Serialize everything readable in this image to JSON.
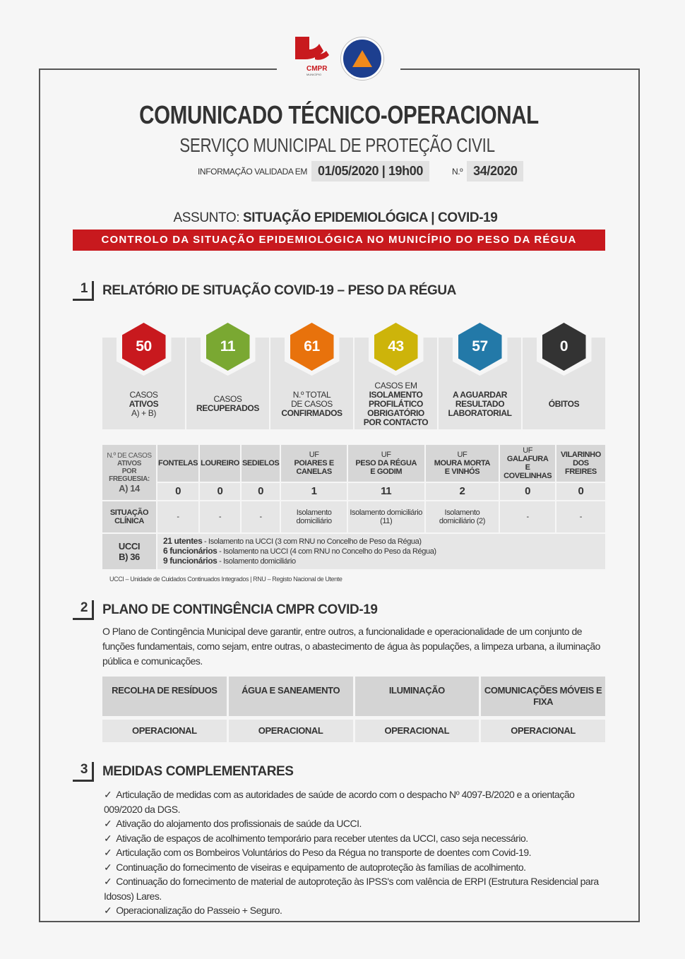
{
  "header": {
    "logo_text": "CMPR MUNICÍPIO PESO DA RÉGUA",
    "seal_text": "PROTECÇÃO CIVIL PESO DA RÉGUA",
    "title": "COMUNICADO TÉCNICO-OPERACIONAL",
    "subtitle": "SERVIÇO MUNICIPAL DE PROTEÇÃO CIVIL",
    "validated_label": "INFORMAÇÃO VALIDADA EM",
    "validated_value": "01/05/2020 | 19h00",
    "number_label": "N.º",
    "number_value": "34/2020",
    "subject_label": "ASSUNTO:",
    "subject_value": "SITUAÇÃO EPIDEMIOLÓGICA | COVID-19",
    "banner": "CONTROLO DA SITUAÇÃO EPIDEMIOLÓGICA NO MUNICÍPIO DO PESO DA RÉGUA"
  },
  "section1": {
    "number": "1",
    "title": "RELATÓRIO DE SITUAÇÃO COVID-19 – PESO DA RÉGUA",
    "stats": [
      {
        "value": "50",
        "color": "#c8191e",
        "l1": "CASOS",
        "l2": "ATIVOS",
        "l3": "A) + B)"
      },
      {
        "value": "11",
        "color": "#7aa832",
        "l1": "CASOS",
        "l2": "RECUPERADOS",
        "l3": ""
      },
      {
        "value": "61",
        "color": "#e8720c",
        "l1": "N.º TOTAL",
        "l1b": "DE CASOS",
        "l2": "CONFIRMADOS"
      },
      {
        "value": "43",
        "color": "#cdb40a",
        "l1": "CASOS EM",
        "l2": "ISOLAMENTO",
        "l3": "PROFILÁTICO",
        "l4": "OBRIGATÓRIO",
        "l5": "POR CONTACTO"
      },
      {
        "value": "57",
        "color": "#2379a8",
        "l2": "A AGUARDAR",
        "l3": "RESULTADO",
        "l4": "LABORATORIAL"
      },
      {
        "value": "0",
        "color": "#333333",
        "l2": "ÓBITOS"
      }
    ],
    "table": {
      "corner_l1": "N.º DE CASOS",
      "corner_l2": "ATIVOS",
      "corner_l3": "POR FREGUESIA:",
      "corner_l4": "A) 14",
      "parishes": [
        {
          "uf": "",
          "name": "FONTELAS",
          "name2": "",
          "count": "0",
          "status": "-"
        },
        {
          "uf": "",
          "name": "LOUREIRO",
          "name2": "",
          "count": "0",
          "status": "-"
        },
        {
          "uf": "",
          "name": "SEDIELOS",
          "name2": "",
          "count": "0",
          "status": "-"
        },
        {
          "uf": "UF",
          "name": "POIARES E",
          "name2": "CANELAS",
          "count": "1",
          "status": "Isolamento domiciliário"
        },
        {
          "uf": "UF",
          "name": "PESO DA RÉGUA",
          "name2": "E GODIM",
          "count": "11",
          "status": "Isolamento domiciliário (11)"
        },
        {
          "uf": "UF",
          "name": "MOURA MORTA",
          "name2": "E VINHÓS",
          "count": "2",
          "status": "Isolamento domiciliário (2)"
        },
        {
          "uf": "UF",
          "name": "GALAFURA",
          "name2": "E COVELINHAS",
          "count": "0",
          "status": "-"
        },
        {
          "uf": "",
          "name": "VILARINHO",
          "name2": "DOS FREIRES",
          "count": "0",
          "status": "-"
        }
      ],
      "situation_l1": "SITUAÇÃO",
      "situation_l2": "CLÍNICA",
      "ucci_l1": "UCCI",
      "ucci_l2": "B) 36",
      "ucci_lines": [
        {
          "bold": "21 utentes",
          "text": " - Isolamento na UCCI (3 com RNU no Concelho de Peso da Régua)"
        },
        {
          "bold": "6 funcionários",
          "text": " - Isolamento na UCCI (4 com RNU no Concelho do Peso da Régua)"
        },
        {
          "bold": "9 funcionários",
          "text": " - Isolamento domiciliário"
        }
      ]
    },
    "footnote": "UCCI – Unidade de Cuidados Continuados Integrados | RNU – Registo Nacional de Utente"
  },
  "section2": {
    "number": "2",
    "title": "PLANO DE CONTINGÊNCIA CMPR COVID-19",
    "paragraph": "O Plano de Contingência Municipal deve garantir, entre outros, a funcionalidade e operacionalidade de um conjunto de funções fundamentais, como sejam, entre outras, o abastecimento de água às populações, a limpeza urbana, a iluminação pública e comunicações.",
    "services": [
      {
        "name": "RECOLHA DE RESÍDUOS",
        "status": "OPERACIONAL"
      },
      {
        "name": "ÁGUA E SANEAMENTO",
        "status": "OPERACIONAL"
      },
      {
        "name": "ILUMINAÇÃO",
        "status": "OPERACIONAL"
      },
      {
        "name": "COMUNICAÇÕES MÓVEIS E FIXA",
        "status": "OPERACIONAL"
      }
    ]
  },
  "section3": {
    "number": "3",
    "title": "MEDIDAS COMPLEMENTARES",
    "items": [
      "Articulação de medidas com as autoridades de saúde de acordo com o despacho Nº 4097-B/2020 e a orientação 009/2020 da DGS.",
      "Ativação do alojamento dos profissionais de saúde da UCCI.",
      "Ativação de espaços de acolhimento temporário para receber utentes da UCCI, caso seja necessário.",
      "Articulação com os Bombeiros Voluntários do Peso da Régua no transporte de doentes com Covid-19.",
      "Continuação do fornecimento de viseiras e equipamento de autoproteção às famílias de acolhimento.",
      "Continuação do fornecimento de material de autoproteção às IPSS's com valência de ERPI (Estrutura Residencial para Idosos) Lares.",
      "Operacionalização do Passeio + Seguro."
    ]
  }
}
